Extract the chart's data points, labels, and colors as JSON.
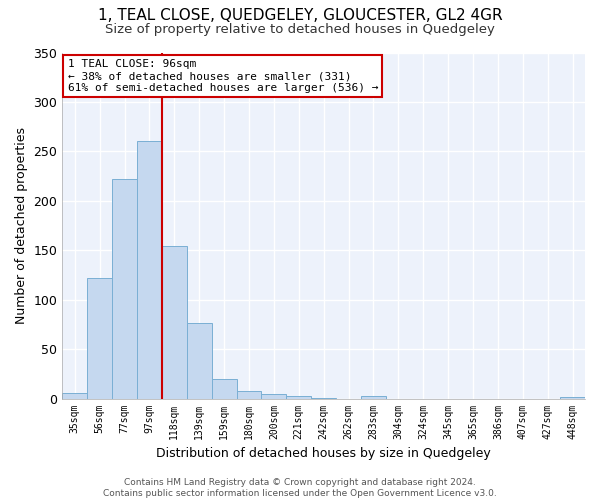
{
  "title": "1, TEAL CLOSE, QUEDGELEY, GLOUCESTER, GL2 4GR",
  "subtitle": "Size of property relative to detached houses in Quedgeley",
  "xlabel": "Distribution of detached houses by size in Quedgeley",
  "ylabel": "Number of detached properties",
  "bar_labels": [
    "35sqm",
    "56sqm",
    "77sqm",
    "97sqm",
    "118sqm",
    "139sqm",
    "159sqm",
    "180sqm",
    "200sqm",
    "221sqm",
    "242sqm",
    "262sqm",
    "283sqm",
    "304sqm",
    "324sqm",
    "345sqm",
    "365sqm",
    "386sqm",
    "407sqm",
    "427sqm",
    "448sqm"
  ],
  "bar_values": [
    6,
    122,
    222,
    260,
    154,
    76,
    20,
    8,
    5,
    3,
    1,
    0,
    3,
    0,
    0,
    0,
    0,
    0,
    0,
    0,
    2
  ],
  "bar_color": "#c5d8ef",
  "bar_edgecolor": "#7aafd4",
  "vline_x": 3.5,
  "vline_color": "#cc0000",
  "annotation_text": "1 TEAL CLOSE: 96sqm\n← 38% of detached houses are smaller (331)\n61% of semi-detached houses are larger (536) →",
  "annotation_box_color": "#ffffff",
  "annotation_box_edgecolor": "#cc0000",
  "ylim": [
    0,
    350
  ],
  "yticks": [
    0,
    50,
    100,
    150,
    200,
    250,
    300,
    350
  ],
  "bg_color": "#ffffff",
  "plot_bg_color": "#edf2fb",
  "grid_color": "#ffffff",
  "footer": "Contains HM Land Registry data © Crown copyright and database right 2024.\nContains public sector information licensed under the Open Government Licence v3.0.",
  "title_fontsize": 11,
  "subtitle_fontsize": 9.5,
  "xlabel_fontsize": 9,
  "ylabel_fontsize": 9,
  "annotation_fontsize": 8,
  "footer_fontsize": 6.5
}
